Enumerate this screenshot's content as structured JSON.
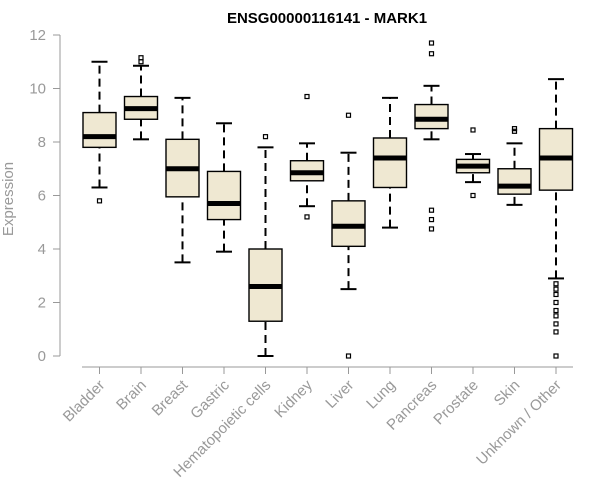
{
  "chart_data": {
    "type": "boxplot",
    "title": "ENSG00000116141 - MARK1",
    "xlabel": "",
    "ylabel": "Expression",
    "ylim": [
      0,
      12
    ],
    "yticks": [
      0,
      2,
      4,
      6,
      8,
      10,
      12
    ],
    "categories": [
      "Bladder",
      "Brain",
      "Breast",
      "Gastric",
      "Hematopoietic cells",
      "Kidney",
      "Liver",
      "Lung",
      "Pancreas",
      "Prostate",
      "Skin",
      "Unknown / Other"
    ],
    "boxes": [
      {
        "category": "Bladder",
        "min": 6.3,
        "q1": 7.8,
        "median": 8.2,
        "q3": 9.1,
        "max": 11.0,
        "outliers": [
          5.8
        ]
      },
      {
        "category": "Brain",
        "min": 8.1,
        "q1": 8.85,
        "median": 9.25,
        "q3": 9.7,
        "max": 10.85,
        "outliers": [
          11.0,
          11.15
        ]
      },
      {
        "category": "Breast",
        "min": 3.5,
        "q1": 5.95,
        "median": 7.0,
        "q3": 8.1,
        "max": 9.65,
        "outliers": []
      },
      {
        "category": "Gastric",
        "min": 3.9,
        "q1": 5.1,
        "median": 5.7,
        "q3": 6.9,
        "max": 8.7,
        "outliers": []
      },
      {
        "category": "Hematopoietic cells",
        "min": 0.0,
        "q1": 1.3,
        "median": 2.6,
        "q3": 4.0,
        "max": 7.8,
        "outliers": [
          8.2
        ]
      },
      {
        "category": "Kidney",
        "min": 5.6,
        "q1": 6.55,
        "median": 6.85,
        "q3": 7.3,
        "max": 7.95,
        "outliers": [
          5.2,
          9.7
        ]
      },
      {
        "category": "Liver",
        "min": 2.5,
        "q1": 4.1,
        "median": 4.85,
        "q3": 5.8,
        "max": 7.6,
        "outliers": [
          0.0,
          9.0
        ]
      },
      {
        "category": "Lung",
        "min": 4.8,
        "q1": 6.3,
        "median": 7.4,
        "q3": 8.15,
        "max": 9.65,
        "outliers": []
      },
      {
        "category": "Pancreas",
        "min": 8.1,
        "q1": 8.5,
        "median": 8.85,
        "q3": 9.4,
        "max": 10.1,
        "outliers": [
          4.75,
          5.1,
          5.45,
          11.3,
          11.7
        ]
      },
      {
        "category": "Prostate",
        "min": 6.5,
        "q1": 6.85,
        "median": 7.1,
        "q3": 7.35,
        "max": 7.55,
        "outliers": [
          6.0,
          8.45
        ]
      },
      {
        "category": "Skin",
        "min": 5.65,
        "q1": 6.05,
        "median": 6.35,
        "q3": 7.0,
        "max": 7.95,
        "outliers": [
          8.4,
          8.5
        ]
      },
      {
        "category": "Unknown / Other",
        "min": 2.9,
        "q1": 6.2,
        "median": 7.4,
        "q3": 8.5,
        "max": 10.35,
        "outliers": [
          0.0,
          0.9,
          1.2,
          1.5,
          1.7,
          2.0,
          2.3,
          2.5,
          2.7
        ]
      }
    ]
  }
}
